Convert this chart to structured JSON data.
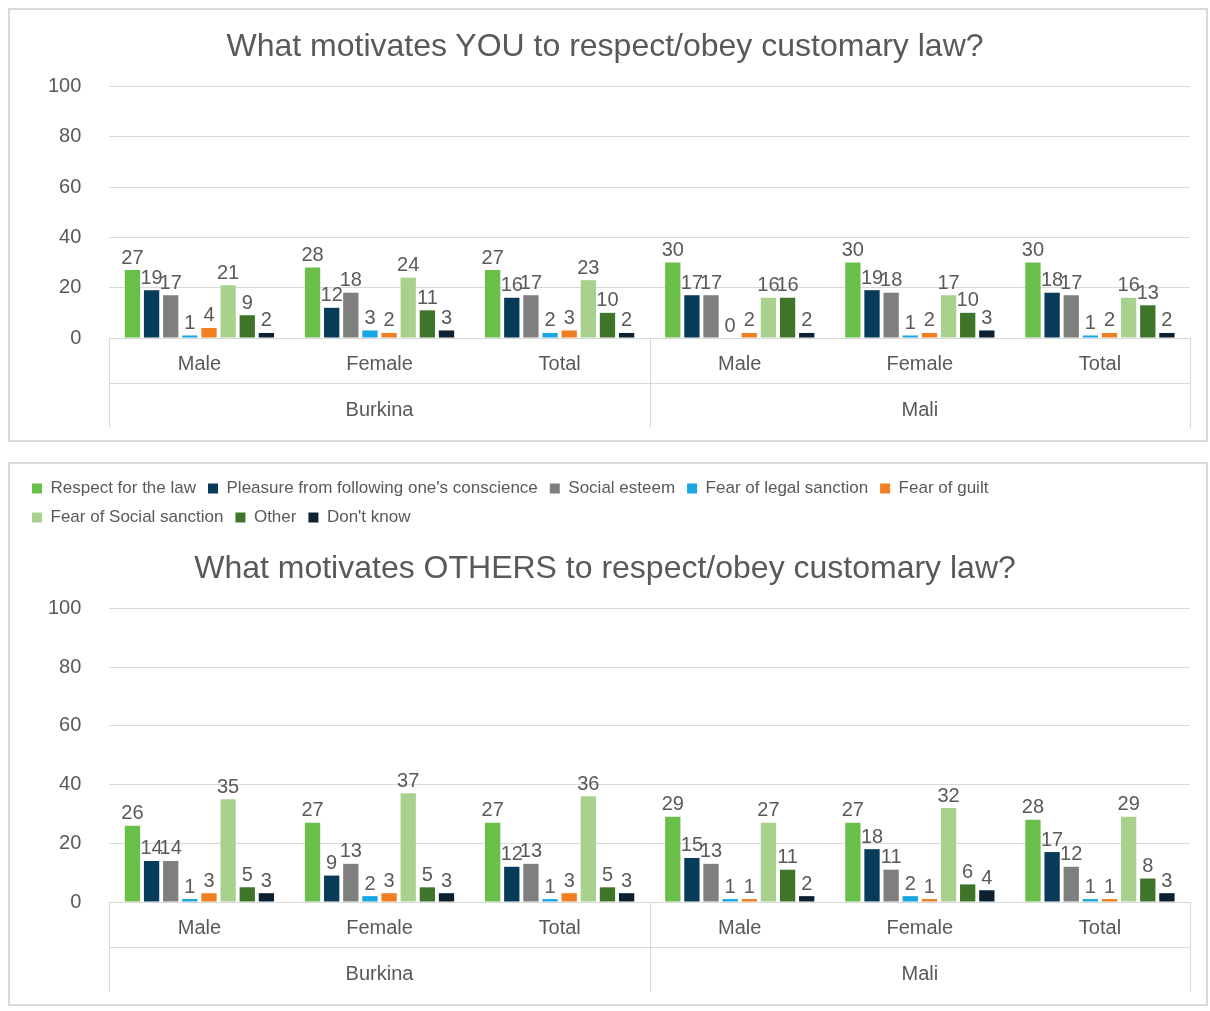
{
  "chart_data": [
    {
      "type": "bar",
      "title": "What motivates YOU to respect/obey customary law?",
      "categories": [
        "Male",
        "Female",
        "Total",
        "Male",
        "Female",
        "Total"
      ],
      "annotations": [
        "Burkina",
        "Mali"
      ],
      "ylim": [
        0,
        100
      ],
      "yticks": [
        0,
        20,
        40,
        60,
        80,
        100
      ],
      "grid": "y",
      "legend": false,
      "data_labels": true,
      "series": [
        {
          "color": "#6abf4b",
          "values": [
            27,
            28,
            27,
            30,
            30,
            30
          ]
        },
        {
          "color": "#073b5a",
          "values": [
            19,
            12,
            16,
            17,
            19,
            18
          ]
        },
        {
          "color": "#7f7f7f",
          "values": [
            17,
            18,
            17,
            17,
            18,
            17
          ]
        },
        {
          "color": "#1aa6e0",
          "values": [
            1,
            3,
            2,
            0,
            1,
            1
          ]
        },
        {
          "color": "#f07f22",
          "values": [
            4,
            2,
            3,
            2,
            2,
            2
          ]
        },
        {
          "color": "#a9d18e",
          "values": [
            21,
            24,
            23,
            16,
            17,
            16
          ]
        },
        {
          "color": "#3f7529",
          "values": [
            9,
            11,
            10,
            16,
            10,
            13
          ]
        },
        {
          "color": "#0c2233",
          "values": [
            2,
            3,
            2,
            2,
            3,
            2
          ]
        }
      ]
    },
    {
      "type": "bar",
      "title": "What motivates OTHERS to respect/obey customary law?",
      "categories": [
        "Male",
        "Female",
        "Total",
        "Male",
        "Female",
        "Total"
      ],
      "annotations": [
        "Burkina",
        "Mali"
      ],
      "ylim": [
        0,
        100
      ],
      "yticks": [
        0,
        20,
        40,
        60,
        80,
        100
      ],
      "grid": "y",
      "legend": "top",
      "data_labels": true,
      "series": [
        {
          "name": "Respect for the law",
          "color": "#6abf4b",
          "values": [
            26,
            27,
            27,
            29,
            27,
            28
          ]
        },
        {
          "name": "Pleasure from following one's conscience",
          "color": "#073b5a",
          "values": [
            14,
            9,
            12,
            15,
            18,
            17
          ]
        },
        {
          "name": "Social esteem",
          "color": "#7f7f7f",
          "values": [
            14,
            13,
            13,
            13,
            11,
            12
          ]
        },
        {
          "name": "Fear of legal sanction",
          "color": "#1aa6e0",
          "values": [
            1,
            2,
            1,
            1,
            2,
            1
          ]
        },
        {
          "name": "Fear of guilt",
          "color": "#f07f22",
          "values": [
            3,
            3,
            3,
            1,
            1,
            1
          ]
        },
        {
          "name": "Fear of Social sanction",
          "color": "#a9d18e",
          "values": [
            35,
            37,
            36,
            27,
            32,
            29
          ]
        },
        {
          "name": "Other",
          "color": "#3f7529",
          "values": [
            5,
            5,
            5,
            11,
            6,
            8
          ]
        },
        {
          "name": "Don't know",
          "color": "#0c2233",
          "values": [
            3,
            3,
            3,
            2,
            4,
            3
          ]
        }
      ]
    }
  ]
}
